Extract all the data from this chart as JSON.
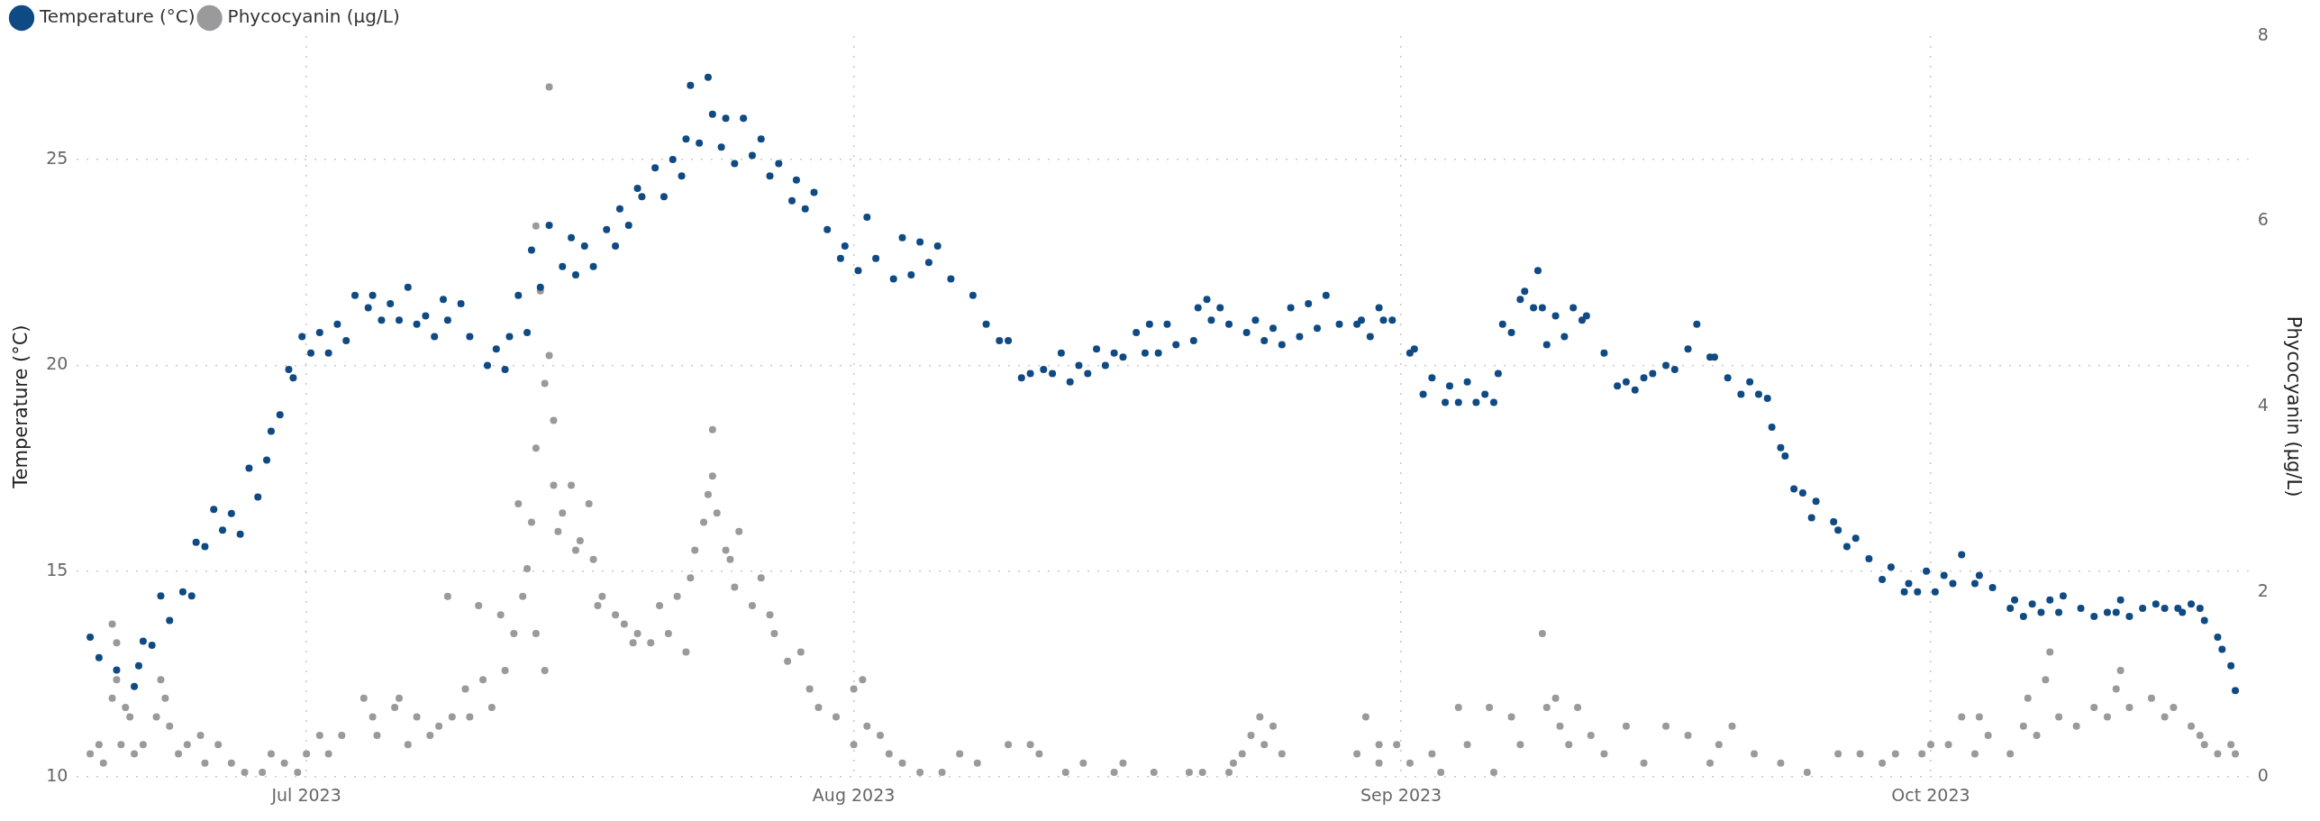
{
  "chart_data": {
    "type": "scatter",
    "ylabel": "Temperature (°C)",
    "y2label": "Phycocyanin (µg/L)",
    "xlim": [
      "2023-06-18",
      "2023-10-19"
    ],
    "xticks": [
      {
        "value": "2023-07-01",
        "label": "Jul 2023"
      },
      {
        "value": "2023-08-01",
        "label": "Aug 2023"
      },
      {
        "value": "2023-09-01",
        "label": "Sep 2023"
      },
      {
        "value": "2023-10-01",
        "label": "Oct 2023"
      }
    ],
    "ylim": [
      10,
      28
    ],
    "yticks": [
      10,
      15,
      20,
      25
    ],
    "y2lim": [
      0,
      8
    ],
    "y2ticks": [
      0,
      2,
      4,
      6,
      8
    ],
    "grid": true,
    "legend": "top left",
    "marker": "circle",
    "series": [
      {
        "name": "Temperature (°C)",
        "color": "#0f4a84",
        "x": [
          "2023-06-18T18:00",
          "2023-06-19T06:00",
          "2023-06-20T06:00",
          "2023-06-21T06:00",
          "2023-06-21T12:00",
          "2023-06-21T18:00",
          "2023-06-22T06:00",
          "2023-06-22T18:00",
          "2023-06-23T06:00",
          "2023-06-24T00:00",
          "2023-06-24T12:00",
          "2023-06-24T18:00",
          "2023-06-25T06:00",
          "2023-06-25T18:00",
          "2023-06-26T06:00",
          "2023-06-26T18:00",
          "2023-06-27T06:00",
          "2023-06-27T18:00",
          "2023-06-28T06:00",
          "2023-06-28T18:00",
          "2023-06-29T00:00",
          "2023-06-29T12:00",
          "2023-06-30T00:00",
          "2023-06-30T06:00",
          "2023-06-30T18:00",
          "2023-07-01T06:00",
          "2023-07-01T18:00",
          "2023-07-02T06:00",
          "2023-07-02T18:00",
          "2023-07-03T06:00",
          "2023-07-03T18:00",
          "2023-07-04T12:00",
          "2023-07-04T18:00",
          "2023-07-05T06:00",
          "2023-07-05T18:00",
          "2023-07-06T06:00",
          "2023-07-06T18:00",
          "2023-07-07T06:00",
          "2023-07-07T18:00",
          "2023-07-08T06:00",
          "2023-07-08T18:00",
          "2023-07-09T00:00",
          "2023-07-09T18:00",
          "2023-07-10T06:00",
          "2023-07-11T06:00",
          "2023-07-11T18:00",
          "2023-07-12T06:00",
          "2023-07-12T12:00",
          "2023-07-13T00:00",
          "2023-07-13T12:00",
          "2023-07-13T18:00",
          "2023-07-14T06:00",
          "2023-07-14T18:00",
          "2023-07-15T12:00",
          "2023-07-16T00:00",
          "2023-07-16T06:00",
          "2023-07-16T18:00",
          "2023-07-17T06:00",
          "2023-07-18T00:00",
          "2023-07-18T12:00",
          "2023-07-18T18:00",
          "2023-07-19T06:00",
          "2023-07-19T18:00",
          "2023-07-20T00:00",
          "2023-07-20T18:00",
          "2023-07-21T06:00",
          "2023-07-21T18:00",
          "2023-07-22T06:00",
          "2023-07-22T12:00",
          "2023-07-22T18:00",
          "2023-07-23T06:00",
          "2023-07-23T18:00",
          "2023-07-24T00:00",
          "2023-07-24T12:00",
          "2023-07-24T18:00",
          "2023-07-25T06:00",
          "2023-07-25T18:00",
          "2023-07-26T06:00",
          "2023-07-26T18:00",
          "2023-07-27T06:00",
          "2023-07-27T18:00",
          "2023-07-28T12:00",
          "2023-07-28T18:00",
          "2023-07-29T06:00",
          "2023-07-29T18:00",
          "2023-07-30T12:00",
          "2023-07-31T06:00",
          "2023-07-31T12:00",
          "2023-08-01T06:00",
          "2023-08-01T18:00",
          "2023-08-02T06:00",
          "2023-08-03T06:00",
          "2023-08-03T18:00",
          "2023-08-04T06:00",
          "2023-08-04T18:00",
          "2023-08-05T06:00",
          "2023-08-05T18:00",
          "2023-08-06T12:00",
          "2023-08-07T18:00",
          "2023-08-08T12:00",
          "2023-08-09T06:00",
          "2023-08-09T18:00",
          "2023-08-10T12:00",
          "2023-08-11T00:00",
          "2023-08-11T18:00",
          "2023-08-12T06:00",
          "2023-08-12T18:00",
          "2023-08-13T06:00",
          "2023-08-13T18:00",
          "2023-08-14T06:00",
          "2023-08-14T18:00",
          "2023-08-15T06:00",
          "2023-08-15T18:00",
          "2023-08-16T06:00",
          "2023-08-17T00:00",
          "2023-08-17T12:00",
          "2023-08-17T18:00",
          "2023-08-18T06:00",
          "2023-08-18T18:00",
          "2023-08-19T06:00",
          "2023-08-20T06:00",
          "2023-08-20T12:00",
          "2023-08-21T00:00",
          "2023-08-21T06:00",
          "2023-08-21T18:00",
          "2023-08-22T06:00",
          "2023-08-23T06:00",
          "2023-08-23T18:00",
          "2023-08-24T06:00",
          "2023-08-24T18:00",
          "2023-08-25T06:00",
          "2023-08-25T18:00",
          "2023-08-26T06:00",
          "2023-08-26T18:00",
          "2023-08-27T06:00",
          "2023-08-27T18:00",
          "2023-08-28T12:00",
          "2023-08-29T12:00",
          "2023-08-29T18:00",
          "2023-08-30T06:00",
          "2023-08-30T18:00",
          "2023-08-31T00:00",
          "2023-08-31T12:00",
          "2023-09-01T12:00",
          "2023-09-01T18:00",
          "2023-09-02T06:00",
          "2023-09-02T18:00",
          "2023-09-03T12:00",
          "2023-09-03T18:00",
          "2023-09-04T06:00",
          "2023-09-04T18:00",
          "2023-09-05T06:00",
          "2023-09-05T18:00",
          "2023-09-06T06:00",
          "2023-09-06T12:00",
          "2023-09-06T18:00",
          "2023-09-07T06:00",
          "2023-09-07T18:00",
          "2023-09-08T00:00",
          "2023-09-08T12:00",
          "2023-09-08T18:00",
          "2023-09-09T00:00",
          "2023-09-09T06:00",
          "2023-09-09T18:00",
          "2023-09-10T06:00",
          "2023-09-10T18:00",
          "2023-09-11T06:00",
          "2023-09-11T12:00",
          "2023-09-12T12:00",
          "2023-09-13T06:00",
          "2023-09-13T18:00",
          "2023-09-14T06:00",
          "2023-09-14T18:00",
          "2023-09-15T06:00",
          "2023-09-16T00:00",
          "2023-09-16T12:00",
          "2023-09-17T06:00",
          "2023-09-17T18:00",
          "2023-09-18T12:00",
          "2023-09-18T18:00",
          "2023-09-19T12:00",
          "2023-09-20T06:00",
          "2023-09-20T18:00",
          "2023-09-21T06:00",
          "2023-09-21T18:00",
          "2023-09-22T00:00",
          "2023-09-22T12:00",
          "2023-09-22T18:00",
          "2023-09-23T06:00",
          "2023-09-23T18:00",
          "2023-09-24T06:00",
          "2023-09-24T12:00",
          "2023-09-25T12:00",
          "2023-09-25T18:00",
          "2023-09-26T06:00",
          "2023-09-26T18:00",
          "2023-09-27T12:00",
          "2023-09-28T06:00",
          "2023-09-28T18:00",
          "2023-09-29T12:00",
          "2023-09-29T18:00",
          "2023-09-30T06:00",
          "2023-09-30T18:00",
          "2023-10-01T06:00",
          "2023-10-01T18:00",
          "2023-10-02T06:00",
          "2023-10-02T18:00",
          "2023-10-03T12:00",
          "2023-10-03T18:00",
          "2023-10-04T12:00",
          "2023-10-05T12:00",
          "2023-10-05T18:00",
          "2023-10-06T06:00",
          "2023-10-06T18:00",
          "2023-10-07T06:00",
          "2023-10-07T18:00",
          "2023-10-08T06:00",
          "2023-10-08T12:00",
          "2023-10-09T12:00",
          "2023-10-10T06:00",
          "2023-10-11T00:00",
          "2023-10-11T12:00",
          "2023-10-11T18:00",
          "2023-10-12T06:00",
          "2023-10-13T00:00",
          "2023-10-13T18:00",
          "2023-10-14T06:00",
          "2023-10-15T00:00",
          "2023-10-15T06:00",
          "2023-10-15T18:00",
          "2023-10-16T06:00",
          "2023-10-16T12:00",
          "2023-10-17T06:00",
          "2023-10-17T12:00",
          "2023-10-18T00:00",
          "2023-10-18T06:00"
        ],
        "values": [
          13.4,
          12.9,
          12.6,
          12.2,
          12.7,
          13.3,
          13.2,
          14.4,
          13.8,
          14.5,
          14.4,
          15.7,
          15.6,
          16.5,
          16.0,
          16.4,
          15.9,
          17.5,
          16.8,
          17.7,
          18.4,
          18.8,
          19.9,
          19.7,
          20.7,
          20.3,
          20.8,
          20.3,
          21.0,
          20.6,
          21.7,
          21.4,
          21.7,
          21.1,
          21.5,
          21.1,
          21.9,
          21.0,
          21.2,
          20.7,
          21.6,
          21.1,
          21.5,
          20.7,
          20.0,
          20.4,
          19.9,
          20.7,
          21.7,
          20.8,
          22.8,
          21.9,
          23.4,
          22.4,
          23.1,
          22.2,
          22.9,
          22.4,
          23.3,
          22.9,
          23.8,
          23.4,
          24.3,
          24.1,
          24.8,
          24.1,
          25.0,
          24.6,
          25.5,
          26.8,
          25.4,
          27.0,
          26.1,
          25.3,
          26.0,
          24.9,
          26.0,
          25.1,
          25.5,
          24.6,
          24.9,
          24.0,
          24.5,
          23.8,
          24.2,
          23.3,
          22.6,
          22.9,
          22.3,
          23.6,
          22.6,
          22.1,
          23.1,
          22.2,
          23.0,
          22.5,
          22.9,
          22.1,
          21.7,
          21.0,
          20.6,
          20.6,
          19.7,
          19.8,
          19.9,
          19.8,
          20.3,
          19.6,
          20.0,
          19.8,
          20.4,
          20.0,
          20.3,
          20.2,
          20.8,
          20.3,
          21.0,
          20.3,
          21.0,
          20.5,
          20.6,
          21.4,
          21.6,
          21.1,
          21.4,
          21.0,
          20.8,
          21.1,
          20.6,
          20.9,
          20.5,
          21.4,
          20.7,
          21.5,
          20.9,
          21.7,
          21.0,
          21.0,
          21.1,
          20.7,
          21.4,
          21.1,
          21.1,
          20.3,
          20.4,
          19.3,
          19.7,
          19.1,
          19.5,
          19.1,
          19.6,
          19.1,
          19.3,
          19.1,
          19.8,
          21.0,
          20.8,
          21.6,
          21.8,
          21.4,
          22.3,
          21.4,
          20.5,
          21.2,
          20.7,
          21.4,
          21.1,
          21.2,
          20.3,
          19.5,
          19.6,
          19.4,
          19.7,
          19.8,
          20.0,
          19.9,
          20.4,
          21.0,
          20.2,
          20.2,
          19.7,
          19.3,
          19.6,
          19.3,
          19.2,
          18.5,
          18.0,
          17.8,
          17.0,
          16.9,
          16.3,
          16.7,
          16.2,
          16.0,
          15.6,
          15.8,
          15.3,
          14.8,
          15.1,
          14.5,
          14.7,
          14.5,
          15.0,
          14.5,
          14.9,
          14.7,
          15.4,
          14.7,
          14.9,
          14.6,
          14.1,
          14.3,
          13.9,
          14.2,
          14.0,
          14.3,
          14.0,
          14.4,
          14.1,
          13.9,
          14.0,
          14.0,
          14.3,
          13.9,
          14.1,
          14.2,
          14.1,
          14.1,
          14.0,
          14.2,
          14.1,
          13.8,
          13.4,
          13.1,
          12.7,
          12.1
        ]
      },
      {
        "name": "Phycocyanin (µg/L)",
        "color": "#9a9a9c",
        "axis": "y2",
        "x": [
          "2023-06-18T18:00",
          "2023-06-19T06:00",
          "2023-06-19T12:00",
          "2023-06-20T00:00",
          "2023-06-20T00:00",
          "2023-06-20T06:00",
          "2023-06-20T06:00",
          "2023-06-20T12:00",
          "2023-06-20T18:00",
          "2023-06-21T00:00",
          "2023-06-21T06:00",
          "2023-06-21T18:00",
          "2023-06-22T12:00",
          "2023-06-22T18:00",
          "2023-06-23T00:00",
          "2023-06-23T06:00",
          "2023-06-23T18:00",
          "2023-06-24T06:00",
          "2023-06-25T00:00",
          "2023-06-25T06:00",
          "2023-06-26T00:00",
          "2023-06-26T18:00",
          "2023-06-27T12:00",
          "2023-06-28T12:00",
          "2023-06-29T00:00",
          "2023-06-29T18:00",
          "2023-06-30T12:00",
          "2023-07-01T00:00",
          "2023-07-01T18:00",
          "2023-07-02T06:00",
          "2023-07-03T00:00",
          "2023-07-04T06:00",
          "2023-07-04T18:00",
          "2023-07-05T00:00",
          "2023-07-06T00:00",
          "2023-07-06T06:00",
          "2023-07-06T18:00",
          "2023-07-07T06:00",
          "2023-07-08T00:00",
          "2023-07-08T12:00",
          "2023-07-09T00:00",
          "2023-07-09T06:00",
          "2023-07-10T00:00",
          "2023-07-10T06:00",
          "2023-07-10T18:00",
          "2023-07-11T00:00",
          "2023-07-11T12:00",
          "2023-07-12T00:00",
          "2023-07-12T06:00",
          "2023-07-12T18:00",
          "2023-07-13T00:00",
          "2023-07-13T06:00",
          "2023-07-13T12:00",
          "2023-07-13T18:00",
          "2023-07-14T00:00",
          "2023-07-14T06:00",
          "2023-07-14T00:00",
          "2023-07-14T00:00",
          "2023-07-14T12:00",
          "2023-07-14T12:00",
          "2023-07-14T18:00",
          "2023-07-14T18:00",
          "2023-07-15T00:00",
          "2023-07-15T00:00",
          "2023-07-15T06:00",
          "2023-07-15T12:00",
          "2023-07-16T00:00",
          "2023-07-16T06:00",
          "2023-07-16T12:00",
          "2023-07-17T00:00",
          "2023-07-17T06:00",
          "2023-07-17T12:00",
          "2023-07-17T18:00",
          "2023-07-18T12:00",
          "2023-07-19T00:00",
          "2023-07-19T12:00",
          "2023-07-19T18:00",
          "2023-07-20T12:00",
          "2023-07-21T00:00",
          "2023-07-21T12:00",
          "2023-07-22T00:00",
          "2023-07-22T12:00",
          "2023-07-22T18:00",
          "2023-07-23T00:00",
          "2023-07-23T12:00",
          "2023-07-23T18:00",
          "2023-07-24T00:00",
          "2023-07-24T00:00",
          "2023-07-24T06:00",
          "2023-07-24T18:00",
          "2023-07-25T00:00",
          "2023-07-25T06:00",
          "2023-07-25T12:00",
          "2023-07-26T06:00",
          "2023-07-26T18:00",
          "2023-07-27T06:00",
          "2023-07-27T12:00",
          "2023-07-28T06:00",
          "2023-07-29T00:00",
          "2023-07-29T12:00",
          "2023-07-30T00:00",
          "2023-07-31T00:00",
          "2023-08-01T00:00",
          "2023-08-01T00:00",
          "2023-08-01T12:00",
          "2023-08-01T18:00",
          "2023-08-02T12:00",
          "2023-08-03T00:00",
          "2023-08-03T18:00",
          "2023-08-04T18:00",
          "2023-08-06T00:00",
          "2023-08-07T00:00",
          "2023-08-08T00:00",
          "2023-08-09T18:00",
          "2023-08-11T00:00",
          "2023-08-11T12:00",
          "2023-08-13T00:00",
          "2023-08-14T00:00",
          "2023-08-15T18:00",
          "2023-08-16T06:00",
          "2023-08-18T00:00",
          "2023-08-20T00:00",
          "2023-08-20T18:00",
          "2023-08-22T06:00",
          "2023-08-22T12:00",
          "2023-08-23T00:00",
          "2023-08-23T12:00",
          "2023-08-24T00:00",
          "2023-08-24T06:00",
          "2023-08-24T18:00",
          "2023-08-25T06:00",
          "2023-08-29T12:00",
          "2023-08-30T00:00",
          "2023-08-30T18:00",
          "2023-08-30T18:00",
          "2023-08-31T18:00",
          "2023-09-01T12:00",
          "2023-09-02T18:00",
          "2023-09-03T06:00",
          "2023-09-04T06:00",
          "2023-09-04T18:00",
          "2023-09-06T00:00",
          "2023-09-06T06:00",
          "2023-09-07T06:00",
          "2023-09-07T18:00",
          "2023-09-09T00:00",
          "2023-09-09T06:00",
          "2023-09-09T18:00",
          "2023-09-10T00:00",
          "2023-09-10T12:00",
          "2023-09-11T00:00",
          "2023-09-11T18:00",
          "2023-09-12T12:00",
          "2023-09-13T18:00",
          "2023-09-14T18:00",
          "2023-09-16T00:00",
          "2023-09-17T06:00",
          "2023-09-18T12:00",
          "2023-09-19T00:00",
          "2023-09-19T18:00",
          "2023-09-21T00:00",
          "2023-09-22T12:00",
          "2023-09-24T00:00",
          "2023-09-25T18:00",
          "2023-09-27T00:00",
          "2023-09-28T06:00",
          "2023-09-29T00:00",
          "2023-09-30T12:00",
          "2023-10-01T00:00",
          "2023-10-02T00:00",
          "2023-10-02T18:00",
          "2023-10-03T12:00",
          "2023-10-03T18:00",
          "2023-10-04T06:00",
          "2023-10-05T12:00",
          "2023-10-06T06:00",
          "2023-10-06T12:00",
          "2023-10-07T00:00",
          "2023-10-07T12:00",
          "2023-10-07T18:00",
          "2023-10-08T06:00",
          "2023-10-09T06:00",
          "2023-10-10T06:00",
          "2023-10-11T00:00",
          "2023-10-11T12:00",
          "2023-10-11T18:00",
          "2023-10-12T06:00",
          "2023-10-13T12:00",
          "2023-10-14T06:00",
          "2023-10-14T18:00",
          "2023-10-15T18:00",
          "2023-10-16T06:00",
          "2023-10-16T12:00",
          "2023-10-17T06:00",
          "2023-10-18T00:00",
          "2023-10-18T06:00"
        ],
        "values": [
          0.25,
          0.35,
          0.15,
          0.85,
          1.65,
          1.45,
          1.05,
          0.35,
          0.75,
          0.65,
          0.25,
          0.35,
          0.65,
          1.05,
          0.85,
          0.55,
          0.25,
          0.35,
          0.45,
          0.15,
          0.35,
          0.15,
          0.05,
          0.05,
          0.25,
          0.15,
          0.05,
          0.25,
          0.45,
          0.25,
          0.45,
          0.85,
          0.65,
          0.45,
          0.75,
          0.85,
          0.35,
          0.65,
          0.45,
          0.55,
          1.95,
          0.65,
          0.95,
          0.65,
          1.85,
          1.05,
          0.75,
          1.75,
          1.15,
          1.55,
          2.95,
          1.95,
          2.25,
          2.75,
          5.95,
          5.25,
          3.55,
          1.55,
          1.15,
          4.25,
          4.55,
          7.45,
          3.85,
          3.15,
          2.65,
          2.85,
          3.15,
          2.45,
          2.55,
          2.95,
          2.35,
          1.85,
          1.95,
          1.75,
          1.65,
          1.45,
          1.55,
          1.45,
          1.85,
          1.55,
          1.95,
          1.35,
          2.15,
          2.45,
          2.75,
          3.05,
          3.25,
          3.75,
          2.85,
          2.45,
          2.35,
          2.05,
          2.65,
          1.85,
          2.15,
          1.75,
          1.55,
          1.25,
          1.35,
          0.95,
          0.75,
          0.65,
          0.95,
          0.35,
          1.05,
          0.55,
          0.45,
          0.25,
          0.15,
          0.05,
          0.05,
          0.25,
          0.15,
          0.35,
          0.35,
          0.25,
          0.05,
          0.15,
          0.05,
          0.15,
          0.05,
          0.05,
          0.05,
          0.05,
          0.15,
          0.25,
          0.45,
          0.65,
          0.35,
          0.55,
          0.25,
          0.25,
          0.65,
          0.35,
          0.15,
          0.35,
          0.15,
          0.25,
          0.05,
          0.75,
          0.35,
          0.75,
          0.05,
          0.65,
          0.35,
          1.55,
          0.75,
          0.85,
          0.55,
          0.35,
          0.75,
          0.45,
          0.25,
          0.55,
          0.15,
          0.55,
          0.45,
          0.15,
          0.35,
          0.55,
          0.25,
          0.15,
          0.05,
          0.25,
          0.25,
          0.15,
          0.25,
          0.25,
          0.35,
          0.35,
          0.65,
          0.25,
          0.65,
          0.45,
          0.25,
          0.55,
          0.85,
          0.45,
          1.05,
          1.35,
          0.65,
          0.55,
          0.75,
          0.65,
          0.95,
          1.15,
          0.75,
          0.85,
          0.65,
          0.75,
          0.55,
          0.45,
          0.35,
          0.25,
          0.35,
          0.25
        ]
      }
    ]
  }
}
